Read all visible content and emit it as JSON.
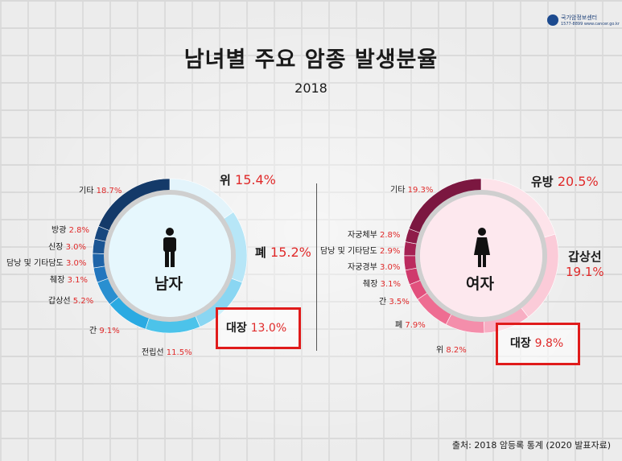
{
  "logo": {
    "name": "국가암정보센터",
    "sub": "1577-8899 www.cancer.go.kr"
  },
  "title": "남녀별 주요 암종 발생분율",
  "subtitle": "2018",
  "source": "출처: 2018 암등록 통계 (2020 발표자료)",
  "chart_data": [
    {
      "type": "pie",
      "center_label": "남자",
      "categories": [
        "위",
        "폐",
        "대장",
        "전립선",
        "간",
        "갑상선",
        "췌장",
        "담낭 및 기타담도",
        "신장",
        "방광",
        "기타"
      ],
      "values": [
        15.4,
        15.2,
        13.0,
        11.5,
        9.1,
        5.2,
        3.1,
        3.0,
        3.0,
        2.8,
        18.7
      ],
      "labels": [
        "위",
        "폐",
        "대장",
        "전립선",
        "간",
        "갑상선",
        "췌장",
        "담낭 및 기타담도",
        "신장",
        "방광",
        "기타"
      ],
      "pct": [
        "15.4%",
        "15.2%",
        "13.0%",
        "11.5%",
        "9.1%",
        "5.2%",
        "3.1%",
        "3.0%",
        "3.0%",
        "2.8%",
        "18.7%"
      ],
      "colors": [
        "#e3f4fb",
        "#b7e6f7",
        "#8ad6f2",
        "#4cc3ea",
        "#2aaae2",
        "#2a8fd0",
        "#2376be",
        "#1f64a8",
        "#1b5593",
        "#17477e",
        "#143a69"
      ]
    },
    {
      "type": "pie",
      "center_label": "여자",
      "categories": [
        "유방",
        "갑상선",
        "대장",
        "위",
        "폐",
        "간",
        "췌장",
        "자궁경부",
        "담낭 및 기타담도",
        "자궁체부",
        "기타"
      ],
      "values": [
        20.5,
        19.1,
        9.8,
        8.2,
        7.9,
        3.5,
        3.1,
        3.0,
        2.9,
        2.8,
        19.3
      ],
      "labels": [
        "유방",
        "갑상선",
        "대장",
        "위",
        "폐",
        "간",
        "췌장",
        "자궁경부",
        "담낭 및 기타담도",
        "자궁체부",
        "기타"
      ],
      "pct": [
        "20.5%",
        "19.1%",
        "9.8%",
        "8.2%",
        "7.9%",
        "3.5%",
        "3.1%",
        "3.0%",
        "2.9%",
        "2.8%",
        "19.3%"
      ],
      "colors": [
        "#fde3ea",
        "#fbcbd8",
        "#f8aec3",
        "#f48eab",
        "#ee6d92",
        "#e2507d",
        "#cf3a6c",
        "#bb2b5e",
        "#a52253",
        "#8f1c49",
        "#7b1740"
      ]
    }
  ]
}
